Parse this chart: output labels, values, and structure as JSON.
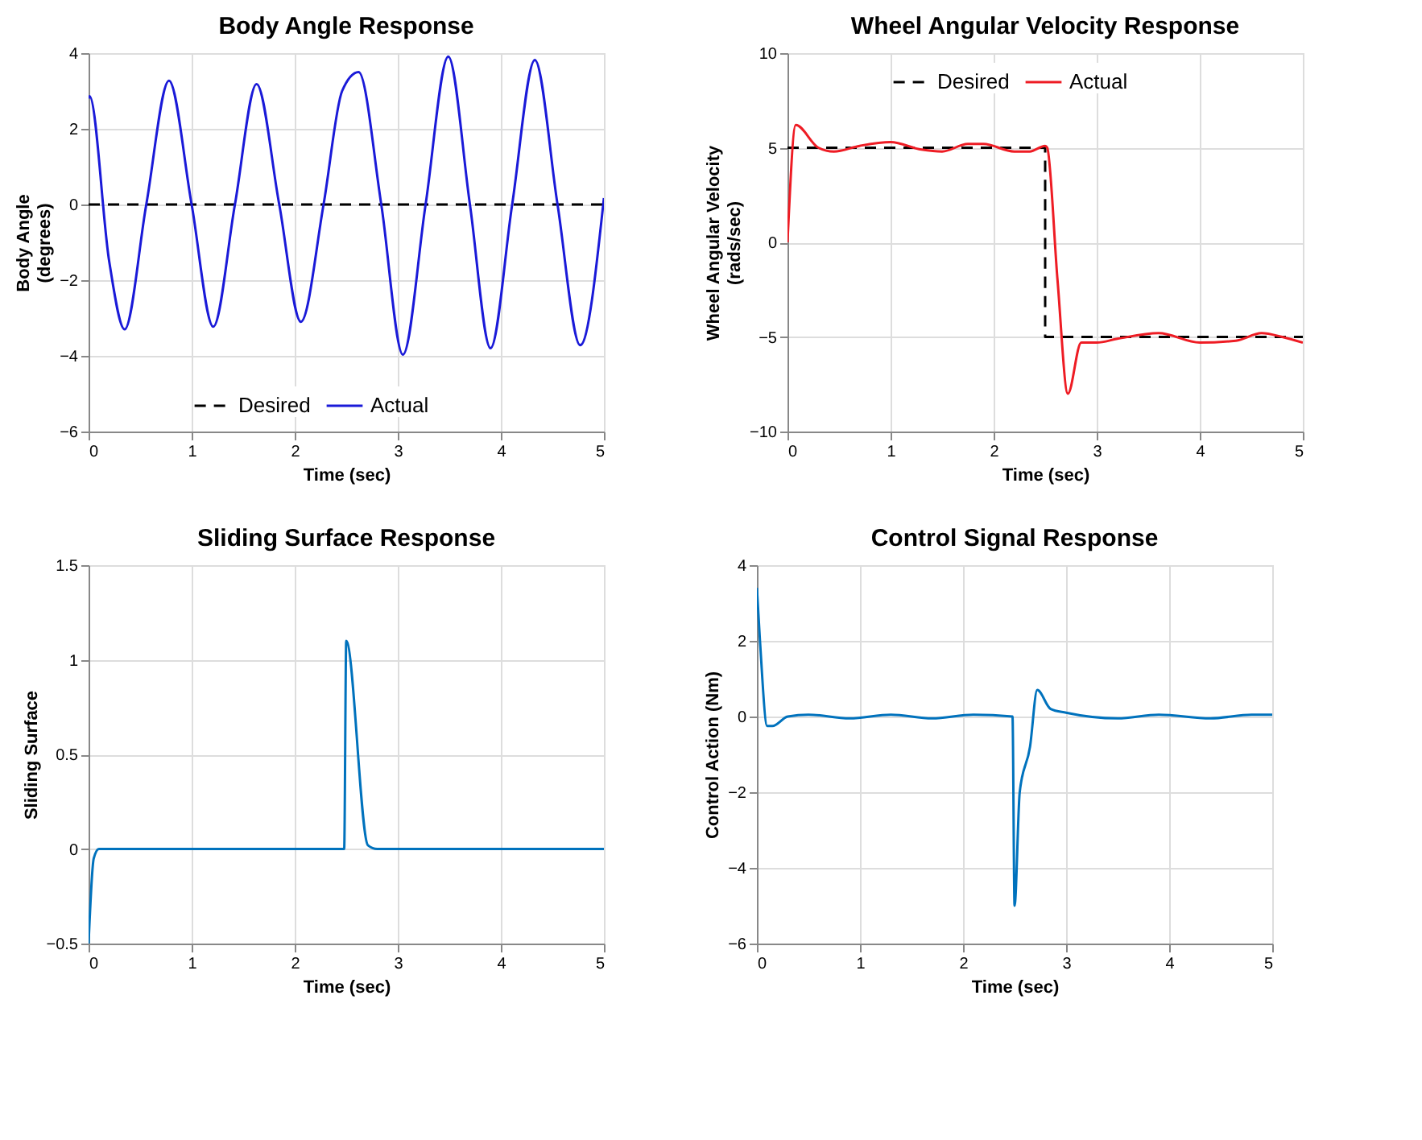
{
  "chart_data": [
    {
      "type": "line",
      "title": "Body Angle Response",
      "xlabel": "Time (sec)",
      "ylabel": "Body Angle\n(degrees)",
      "xlim": [
        0,
        5
      ],
      "ylim": [
        -6,
        4
      ],
      "xticks": [
        0,
        1,
        2,
        3,
        4,
        5
      ],
      "yticks": [
        -6,
        -4,
        -2,
        0,
        2,
        4
      ],
      "grid": true,
      "legend": "bottom",
      "series": [
        {
          "name": "Desired",
          "color": "#000000",
          "line_style": "dashed",
          "x": [
            0,
            5
          ],
          "values": [
            0,
            0
          ]
        },
        {
          "name": "Actual",
          "color": "#1a1ad8",
          "line_style": "solid",
          "x": [
            0,
            0.01,
            0.2,
            0.35,
            0.56,
            0.78,
            1.0,
            1.21,
            1.42,
            1.63,
            1.85,
            2.06,
            2.28,
            2.46,
            2.62,
            2.84,
            3.05,
            3.27,
            3.49,
            3.7,
            3.9,
            4.11,
            4.33,
            4.55,
            4.77,
            5.0
          ],
          "values": [
            2.8,
            2.86,
            -1.5,
            -3.3,
            0,
            3.27,
            0,
            -3.23,
            0,
            3.18,
            0,
            -3.1,
            0,
            3.0,
            3.5,
            0,
            -3.97,
            0,
            3.91,
            0,
            -3.8,
            0,
            3.82,
            0,
            -3.72,
            0.17
          ]
        }
      ]
    },
    {
      "type": "line",
      "title": "Wheel Angular Velocity Response",
      "xlabel": "Time (sec)",
      "ylabel": "Wheel Angular Velocity\n(rads/sec)",
      "xlim": [
        0,
        5
      ],
      "ylim": [
        -10,
        10
      ],
      "xticks": [
        0,
        1,
        2,
        3,
        4,
        5
      ],
      "yticks": [
        -10,
        -5,
        0,
        5,
        10
      ],
      "grid": true,
      "legend": "top",
      "series": [
        {
          "name": "Desired",
          "color": "#000000",
          "line_style": "dashed",
          "x": [
            0,
            2.5,
            2.5,
            5
          ],
          "values": [
            5,
            5,
            -5,
            -5
          ]
        },
        {
          "name": "Actual",
          "color": "#ee1c24",
          "line_style": "solid",
          "x": [
            0,
            0.08,
            0.3,
            0.45,
            0.7,
            1.0,
            1.3,
            1.5,
            1.75,
            1.9,
            2.2,
            2.35,
            2.5,
            2.52,
            2.62,
            2.72,
            2.85,
            3.0,
            3.2,
            3.6,
            4.0,
            4.35,
            4.6,
            4.8,
            5.0
          ],
          "values": [
            0,
            6.2,
            5.0,
            4.8,
            5.1,
            5.3,
            4.9,
            4.8,
            5.2,
            5.2,
            4.8,
            4.8,
            5.1,
            5.0,
            -2,
            -8.0,
            -5.3,
            -5.3,
            -5.1,
            -4.8,
            -5.3,
            -5.2,
            -4.8,
            -5.0,
            -5.3
          ]
        }
      ]
    },
    {
      "type": "line",
      "title": "Sliding Surface Response",
      "xlabel": "Time (sec)",
      "ylabel": "Sliding Surface",
      "xlim": [
        0,
        5
      ],
      "ylim": [
        -0.5,
        1.5
      ],
      "xticks": [
        0,
        1,
        2,
        3,
        4,
        5
      ],
      "yticks": [
        -0.5,
        0,
        0.5,
        1,
        1.5
      ],
      "grid": true,
      "series": [
        {
          "color": "#0072bd",
          "line_style": "solid",
          "x": [
            0,
            0.05,
            0.1,
            2.48,
            2.5,
            2.71,
            2.8,
            5.0
          ],
          "values": [
            -0.5,
            -0.05,
            0,
            0,
            1.1,
            0.02,
            0,
            0
          ]
        }
      ]
    },
    {
      "type": "line",
      "title": "Control Signal Response",
      "xlabel": "Time (sec)",
      "ylabel": "Control Action (Nm)",
      "xlim": [
        0,
        5
      ],
      "ylim": [
        -6,
        4
      ],
      "xticks": [
        0,
        1,
        2,
        3,
        4,
        5
      ],
      "yticks": [
        -6,
        -4,
        -2,
        0,
        2,
        4
      ],
      "grid": true,
      "series": [
        {
          "color": "#0072bd",
          "line_style": "solid",
          "x": [
            0,
            0.03,
            0.1,
            0.15,
            0.3,
            0.5,
            0.9,
            1.3,
            1.7,
            2.1,
            2.48,
            2.5,
            2.55,
            2.65,
            2.72,
            2.85,
            3.0,
            3.5,
            3.9,
            4.4,
            4.8,
            5.0
          ],
          "values": [
            3.4,
            2.0,
            -0.25,
            -0.25,
            0,
            0.05,
            -0.05,
            0.05,
            -0.05,
            0.05,
            0,
            -5.0,
            -2.0,
            -0.8,
            0.7,
            0.2,
            0.1,
            -0.05,
            0.05,
            -0.05,
            0.05,
            0.05
          ]
        }
      ]
    }
  ]
}
